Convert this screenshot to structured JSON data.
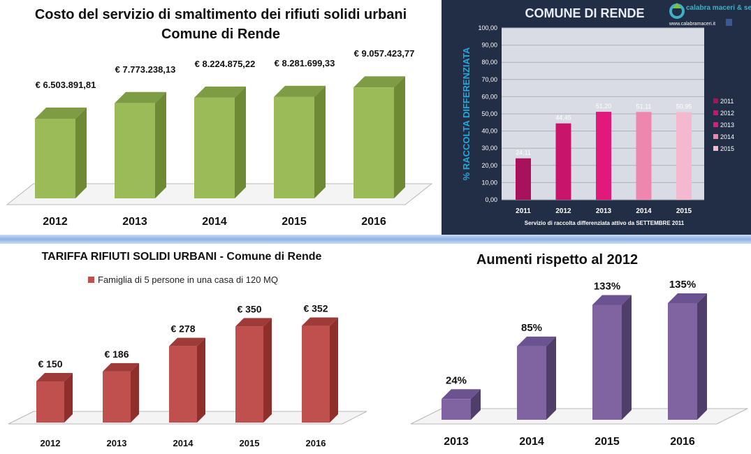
{
  "chart_data": [
    {
      "type": "bar",
      "title": "Costo del servizio di smaltimento dei rifiuti solidi urbani",
      "subtitle": "Comune di Rende",
      "categories": [
        "2012",
        "2013",
        "2014",
        "2015",
        "2016"
      ],
      "values": [
        6503891.81,
        7773238.13,
        8224875.22,
        8281699.33,
        9057423.77
      ],
      "labels": [
        "€ 6.503.891,81",
        "€ 7.773.238,13",
        "€ 8.224.875,22",
        "€ 8.281.699,33",
        "€ 9.057.423,77"
      ],
      "ylim": [
        0,
        10000000
      ],
      "grid": false,
      "colors": {
        "front": "#9bbb59",
        "side": "#6e8a35",
        "top": "#7e9c44"
      }
    },
    {
      "type": "bar",
      "title": "COMUNE DI RENDE",
      "brand": "calabra maceri & servizi",
      "website": "www.calabramaceri.it",
      "ylabel": "% RACCOLTA DIFFERENZIATA",
      "xlabel": "Servizio di raccolta differenziata attivo da SETTEMBRE 2011",
      "categories": [
        "2011",
        "2012",
        "2013",
        "2014",
        "2015"
      ],
      "values": [
        24.11,
        44.45,
        51.2,
        51.11,
        50.95
      ],
      "labels": [
        "24,11",
        "44,45",
        "51,20",
        "51,11",
        "50,95"
      ],
      "yticks": [
        "0,00",
        "10,00",
        "20,00",
        "30,00",
        "40,00",
        "50,00",
        "60,00",
        "70,00",
        "80,00",
        "90,00",
        "100,00"
      ],
      "ylim": [
        0,
        100
      ],
      "grid": true,
      "legend": {
        "position": "right",
        "entries": [
          "2011",
          "2012",
          "2013",
          "2014",
          "2015"
        ]
      },
      "colors": [
        "#a8125c",
        "#c9146c",
        "#e0197a",
        "#ef86ad",
        "#f4b9cf"
      ]
    },
    {
      "type": "bar",
      "title": "TARIFFA RIFIUTI SOLIDI URBANI - Comune di Rende",
      "categories": [
        "2012",
        "2013",
        "2014",
        "2015",
        "2016"
      ],
      "series": [
        {
          "name": "Famiglia di 5 persone in una casa di 120 MQ",
          "values": [
            150,
            186,
            278,
            350,
            352
          ]
        }
      ],
      "labels": [
        "€ 150",
        "€ 186",
        "€ 278",
        "€ 350",
        "€ 352"
      ],
      "ylim": [
        0,
        400
      ],
      "grid": false,
      "legend": {
        "position": "top"
      },
      "colors": {
        "front": "#c0504d",
        "side": "#8f2f2c",
        "top": "#9e3b38"
      }
    },
    {
      "type": "bar",
      "title": "Aumenti rispetto al 2012",
      "categories": [
        "2013",
        "2014",
        "2015",
        "2016"
      ],
      "values": [
        24,
        85,
        133,
        135
      ],
      "labels": [
        "24%",
        "85%",
        "133%",
        "135%"
      ],
      "ylim": [
        0,
        150
      ],
      "grid": false,
      "colors": {
        "front": "#8064a2",
        "side": "#4f3d6a",
        "top": "#6b5290"
      }
    }
  ]
}
